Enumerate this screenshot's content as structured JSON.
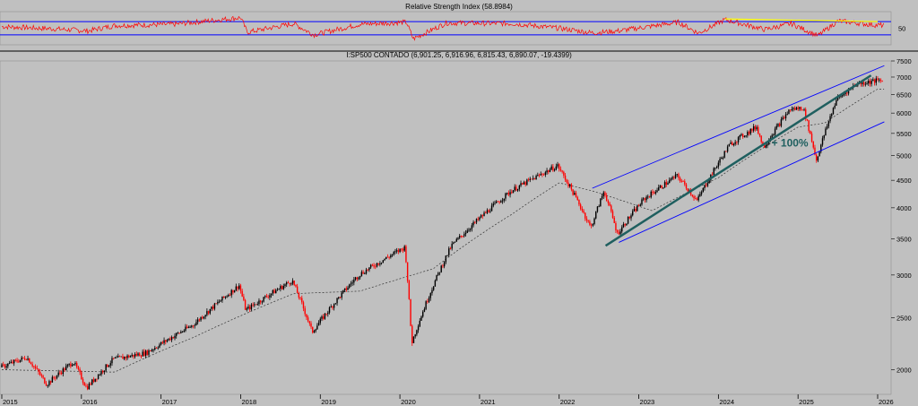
{
  "chart_data": [
    {
      "type": "line",
      "title": "Relative Strength Index (58.8984)",
      "ylim": [
        0,
        100
      ],
      "levels": [
        30,
        70
      ],
      "y_ticks": [
        50
      ],
      "colors": {
        "line": "#ff0000",
        "levels": "#0000ff",
        "trendline": "#ffff00"
      },
      "anchors": [
        {
          "x": "2015-01",
          "y": 55
        },
        {
          "x": "2015-09",
          "y": 48
        },
        {
          "x": "2016-02",
          "y": 42
        },
        {
          "x": "2016-06",
          "y": 58
        },
        {
          "x": "2017-03",
          "y": 62
        },
        {
          "x": "2018-01",
          "y": 82
        },
        {
          "x": "2018-02",
          "y": 38
        },
        {
          "x": "2018-09",
          "y": 64
        },
        {
          "x": "2018-12",
          "y": 30
        },
        {
          "x": "2019-07",
          "y": 62
        },
        {
          "x": "2020-02",
          "y": 68
        },
        {
          "x": "2020-03",
          "y": 18
        },
        {
          "x": "2020-08",
          "y": 66
        },
        {
          "x": "2021-06",
          "y": 64
        },
        {
          "x": "2022-01",
          "y": 50
        },
        {
          "x": "2022-06",
          "y": 36
        },
        {
          "x": "2022-10",
          "y": 42
        },
        {
          "x": "2023-07",
          "y": 68
        },
        {
          "x": "2023-10",
          "y": 35
        },
        {
          "x": "2024-02",
          "y": 76
        },
        {
          "x": "2024-08",
          "y": 46
        },
        {
          "x": "2024-12",
          "y": 64
        },
        {
          "x": "2025-04",
          "y": 27
        },
        {
          "x": "2025-07",
          "y": 72
        },
        {
          "x": "2026-01",
          "y": 58.9
        }
      ],
      "trendline": [
        {
          "x": "2024-02",
          "y": 78
        },
        {
          "x": "2026-01",
          "y": 70
        }
      ]
    },
    {
      "type": "line",
      "subtype": "candlestick",
      "title": "I:SP500 CONTADO (6,901.25, 6,916.96, 6,815.43, 6,890.07, -19.4399)",
      "scale": "log",
      "ylim": [
        1800,
        7500
      ],
      "y_ticks": [
        2000,
        2500,
        3000,
        3500,
        4000,
        4500,
        5000,
        5500,
        6000,
        6500,
        7000,
        7500
      ],
      "x_ticks": [
        "2015",
        "2016",
        "2017",
        "2018",
        "2019",
        "2020",
        "2021",
        "2022",
        "2023",
        "2024",
        "2025",
        "2026"
      ],
      "colors": {
        "up": "#000000",
        "down": "#ff0000",
        "moving_average": "#333333",
        "channel": "#0000ff",
        "trendline": "#1f5f5f",
        "annotation": "#1f5f5f"
      },
      "series": [
        {
          "anchors": [
            {
              "x": "2015-01",
              "y": 2020
            },
            {
              "x": "2015-05",
              "y": 2110
            },
            {
              "x": "2015-08",
              "y": 1880
            },
            {
              "x": "2015-12",
              "y": 2070
            },
            {
              "x": "2016-02",
              "y": 1850
            },
            {
              "x": "2016-06",
              "y": 2090
            },
            {
              "x": "2016-11",
              "y": 2150
            },
            {
              "x": "2017-06",
              "y": 2420
            },
            {
              "x": "2018-01",
              "y": 2870
            },
            {
              "x": "2018-02",
              "y": 2580
            },
            {
              "x": "2018-09",
              "y": 2930
            },
            {
              "x": "2018-12",
              "y": 2350
            },
            {
              "x": "2019-07",
              "y": 3000
            },
            {
              "x": "2020-02",
              "y": 3380
            },
            {
              "x": "2020-03",
              "y": 2240
            },
            {
              "x": "2020-09",
              "y": 3400
            },
            {
              "x": "2021-06",
              "y": 4300
            },
            {
              "x": "2022-01",
              "y": 4790
            },
            {
              "x": "2022-06",
              "y": 3670
            },
            {
              "x": "2022-08",
              "y": 4300
            },
            {
              "x": "2022-10",
              "y": 3580
            },
            {
              "x": "2023-02",
              "y": 4150
            },
            {
              "x": "2023-07",
              "y": 4590
            },
            {
              "x": "2023-10",
              "y": 4120
            },
            {
              "x": "2024-03",
              "y": 5250
            },
            {
              "x": "2024-07",
              "y": 5660
            },
            {
              "x": "2024-08",
              "y": 5180
            },
            {
              "x": "2024-12",
              "y": 6090
            },
            {
              "x": "2025-02",
              "y": 6140
            },
            {
              "x": "2025-04",
              "y": 4900
            },
            {
              "x": "2025-07",
              "y": 6350
            },
            {
              "x": "2025-10",
              "y": 6800
            },
            {
              "x": "2026-01",
              "y": 6890
            }
          ]
        },
        {
          "anchors": [
            {
              "x": "2015-01",
              "y": 2000
            },
            {
              "x": "2016-06",
              "y": 1980
            },
            {
              "x": "2017-06",
              "y": 2300
            },
            {
              "x": "2018-09",
              "y": 2770
            },
            {
              "x": "2019-07",
              "y": 2800
            },
            {
              "x": "2020-06",
              "y": 3080
            },
            {
              "x": "2021-06",
              "y": 3900
            },
            {
              "x": "2022-01",
              "y": 4450
            },
            {
              "x": "2022-06",
              "y": 4300
            },
            {
              "x": "2023-03",
              "y": 3950
            },
            {
              "x": "2024-01",
              "y": 4550
            },
            {
              "x": "2025-01",
              "y": 5650
            },
            {
              "x": "2025-05",
              "y": 5750
            },
            {
              "x": "2026-01",
              "y": 6650
            }
          ]
        }
      ],
      "channel": {
        "upper": [
          {
            "x": "2022-06",
            "y": 4350
          },
          {
            "x": "2026-02",
            "y": 7350
          }
        ],
        "lower": [
          {
            "x": "2022-10",
            "y": 3450
          },
          {
            "x": "2026-02",
            "y": 5780
          }
        ]
      },
      "trendline": [
        {
          "x": "2022-08",
          "y": 3400
        },
        {
          "x": "2025-12",
          "y": 7050
        }
      ],
      "annotation": {
        "text": "+ 100%",
        "x": "2024-09",
        "y": 5200
      }
    }
  ]
}
